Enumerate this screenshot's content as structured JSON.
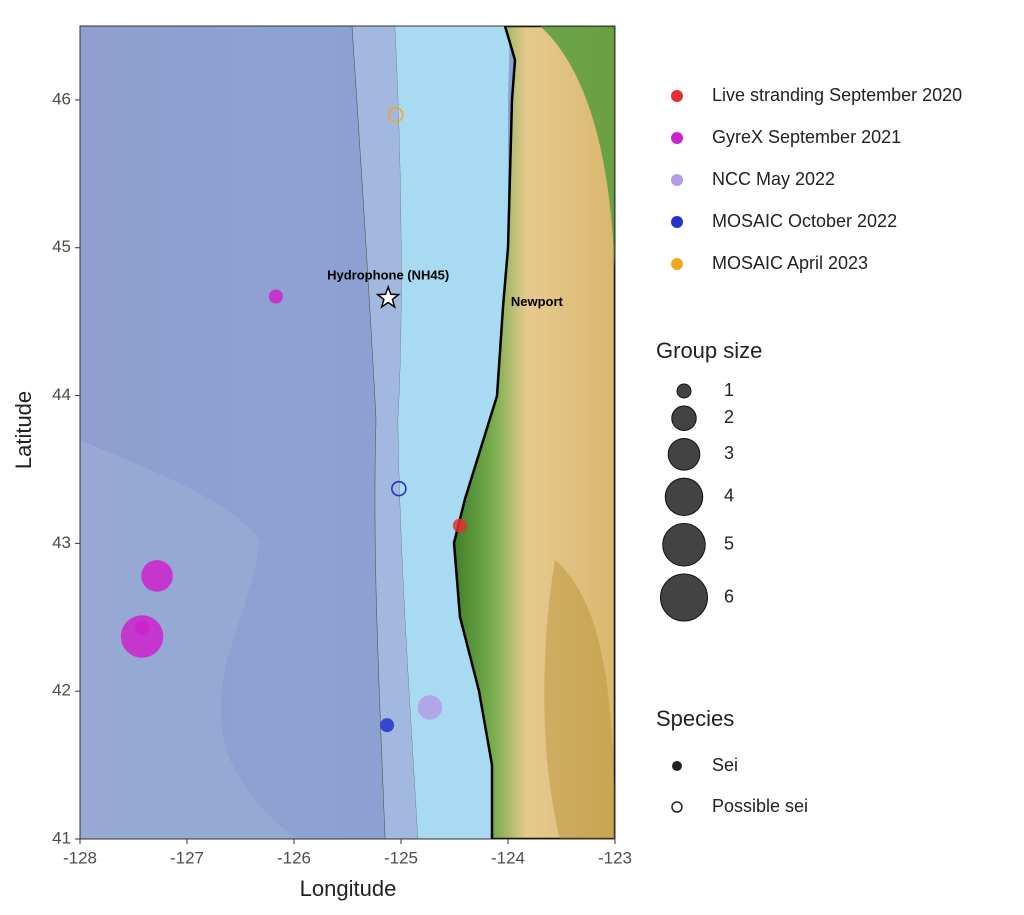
{
  "chart_data": {
    "type": "scatter",
    "x_label": "Longitude",
    "y_label": "Latitude",
    "xlim": [
      -128,
      -123
    ],
    "ylim": [
      41,
      46.5
    ],
    "xticks": [
      -128,
      -127,
      -126,
      -125,
      -124,
      -123
    ],
    "yticks": [
      41,
      42,
      43,
      44,
      45,
      46
    ],
    "series": [
      {
        "name": "Live stranding September 2020",
        "color": "#e03030",
        "x": [
          -124.45
        ],
        "y": [
          43.12
        ],
        "size": [
          1
        ],
        "species": [
          "Sei"
        ]
      },
      {
        "name": "GyreX September 2021",
        "color": "#cc22cc",
        "x": [
          -126.17,
          -127.28,
          -127.42,
          -127.42
        ],
        "y": [
          44.67,
          42.78,
          42.37,
          42.43
        ],
        "size": [
          1,
          3,
          5,
          1
        ],
        "species": [
          "Sei",
          "Sei",
          "Sei",
          "Sei"
        ]
      },
      {
        "name": "NCC May 2022",
        "color": "#b39ce8",
        "x": [
          -124.73
        ],
        "y": [
          41.89
        ],
        "size": [
          2
        ],
        "species": [
          "Sei"
        ]
      },
      {
        "name": "MOSAIC October 2022",
        "color": "#2233cc",
        "x": [
          -125.13,
          -125.02
        ],
        "y": [
          41.77,
          43.37
        ],
        "size": [
          1,
          1
        ],
        "species": [
          "Sei",
          "Possible sei"
        ]
      },
      {
        "name": "MOSAIC April 2023",
        "color": "#f0a820",
        "x": [
          -125.05
        ],
        "y": [
          45.9
        ],
        "size": [
          1
        ],
        "species": [
          "Possible sei"
        ]
      }
    ],
    "annotations": [
      {
        "text": "Hydrophone (NH45)",
        "x": -125.12,
        "y": 44.66,
        "marker": "star"
      },
      {
        "text": "Newport",
        "x": -123.73,
        "y": 44.63
      }
    ],
    "size_legend": {
      "title": "Group size",
      "values": [
        1,
        2,
        3,
        4,
        5,
        6
      ]
    },
    "species_legend": {
      "title": "Species",
      "labels": [
        "Sei",
        "Possible sei"
      ]
    }
  }
}
